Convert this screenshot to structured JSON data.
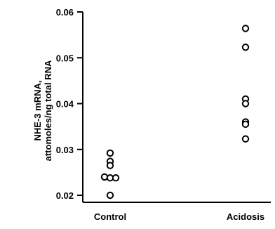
{
  "chart_data": {
    "type": "scatter",
    "title": "",
    "xlabel": "",
    "ylabel": [
      "NHE-3 mRNA,",
      "attomoles/ng total RNA"
    ],
    "categories": [
      "Control",
      "Acidosis"
    ],
    "ylim": [
      0.02,
      0.06
    ],
    "yticks": [
      0.02,
      0.03,
      0.04,
      0.05,
      0.06
    ],
    "ytick_labels": [
      "0.02",
      "0.03",
      "0.04",
      "0.05",
      "0.06"
    ],
    "grid": false,
    "legend": "none",
    "colors": {
      "axis": "#000000",
      "marker_stroke": "#000000",
      "marker_fill": "#ffffff"
    },
    "series": [
      {
        "category": "Control",
        "points": [
          {
            "y": 0.0292,
            "offset": 0
          },
          {
            "y": 0.0274,
            "offset": 0
          },
          {
            "y": 0.0265,
            "offset": 0
          },
          {
            "y": 0.024,
            "offset": -1
          },
          {
            "y": 0.0238,
            "offset": 0
          },
          {
            "y": 0.0238,
            "offset": 1
          },
          {
            "y": 0.02,
            "offset": 0
          }
        ]
      },
      {
        "category": "Acidosis",
        "points": [
          {
            "y": 0.0564,
            "offset": 0
          },
          {
            "y": 0.0523,
            "offset": 0
          },
          {
            "y": 0.041,
            "offset": 0
          },
          {
            "y": 0.04,
            "offset": 0
          },
          {
            "y": 0.036,
            "offset": 0
          },
          {
            "y": 0.0355,
            "offset": 0
          },
          {
            "y": 0.0323,
            "offset": 0
          }
        ]
      }
    ]
  }
}
